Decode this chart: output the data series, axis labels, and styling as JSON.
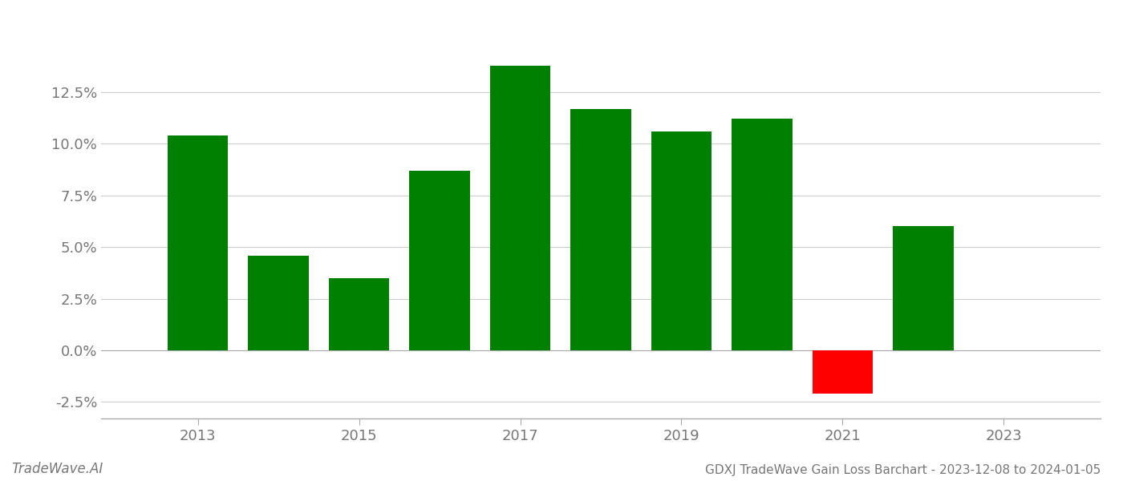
{
  "years": [
    2013,
    2014,
    2015,
    2016,
    2017,
    2018,
    2019,
    2020,
    2021,
    2022
  ],
  "values": [
    0.104,
    0.046,
    0.035,
    0.087,
    0.138,
    0.117,
    0.106,
    0.112,
    -0.021,
    0.06
  ],
  "bar_colors": [
    "#008000",
    "#008000",
    "#008000",
    "#008000",
    "#008000",
    "#008000",
    "#008000",
    "#008000",
    "#ff0000",
    "#008000"
  ],
  "title": "GDXJ TradeWave Gain Loss Barchart - 2023-12-08 to 2024-01-05",
  "footer_left": "TradeWave.AI",
  "background_color": "#ffffff",
  "grid_color": "#cccccc",
  "ylim": [
    -0.033,
    0.158
  ],
  "yticks": [
    -0.025,
    0.0,
    0.025,
    0.05,
    0.075,
    0.1,
    0.125
  ],
  "xtick_labels": [
    2013,
    2015,
    2017,
    2019,
    2021,
    2023
  ],
  "bar_width": 0.75,
  "xlim": [
    2011.8,
    2024.2
  ]
}
